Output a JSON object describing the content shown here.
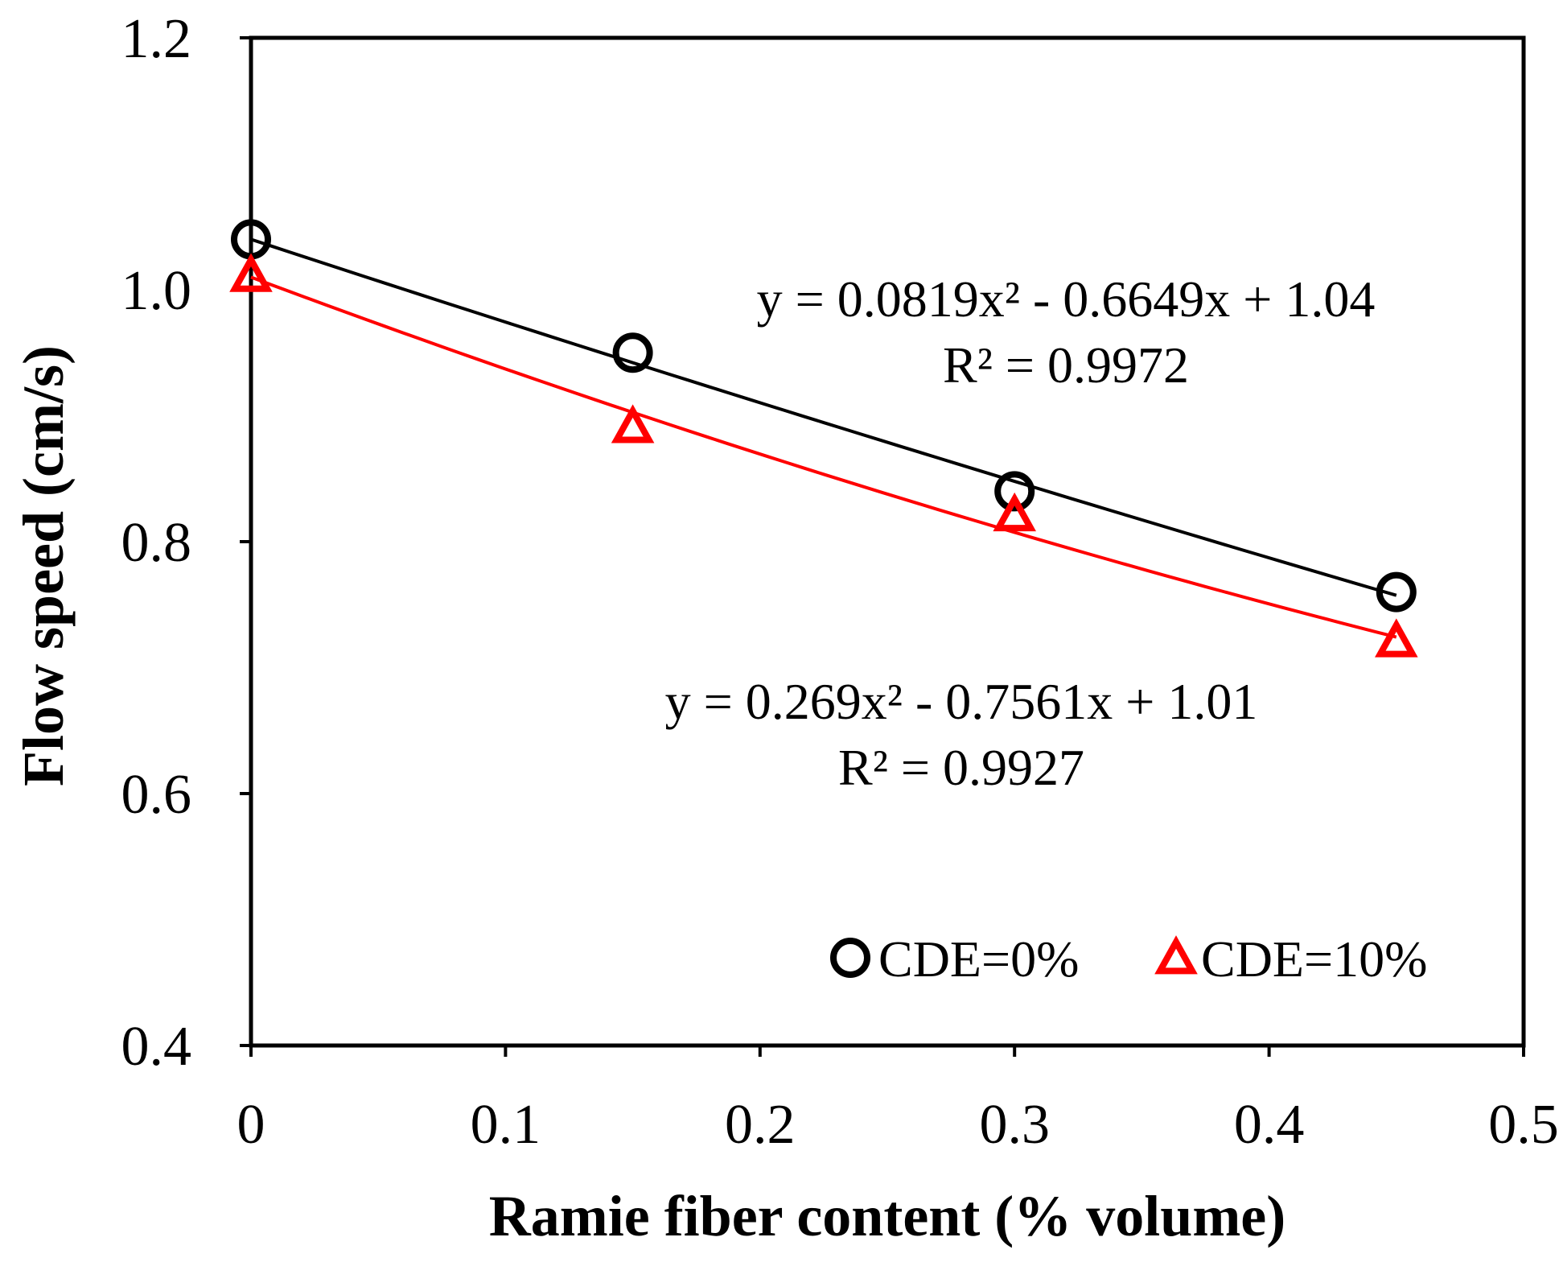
{
  "chart_data": {
    "type": "scatter",
    "title": "",
    "xlabel": "Ramie fiber content (% volume)",
    "ylabel": "Flow speed (cm/s)",
    "xlim": [
      0,
      0.5
    ],
    "ylim": [
      0.4,
      1.2
    ],
    "x_ticks": [
      "0",
      "0.1",
      "0.2",
      "0.3",
      "0.4",
      "0.5"
    ],
    "y_ticks": [
      "0.4",
      "0.6",
      "0.8",
      "1.0",
      "1.2"
    ],
    "grid": false,
    "legend_position": "bottom-right",
    "series": [
      {
        "name": "CDE=0%",
        "marker": "circle",
        "color": "#000000",
        "x": [
          0,
          0.15,
          0.3,
          0.45
        ],
        "y": [
          1.04,
          0.95,
          0.84,
          0.76
        ],
        "trendline": {
          "a": 0.0819,
          "b": -0.6649,
          "c": 1.04
        },
        "equation": "y = 0.0819x² - 0.6649x + 1.04",
        "r2": "R² = 0.9972"
      },
      {
        "name": "CDE=10%",
        "marker": "triangle",
        "color": "#ff0000",
        "x": [
          0,
          0.15,
          0.3,
          0.45
        ],
        "y": [
          1.01,
          0.89,
          0.82,
          0.72
        ],
        "trendline": {
          "a": 0.269,
          "b": -0.7561,
          "c": 1.01
        },
        "equation": "y = 0.269x² - 0.7561x + 1.01",
        "r2": "R² = 0.9927"
      }
    ]
  }
}
